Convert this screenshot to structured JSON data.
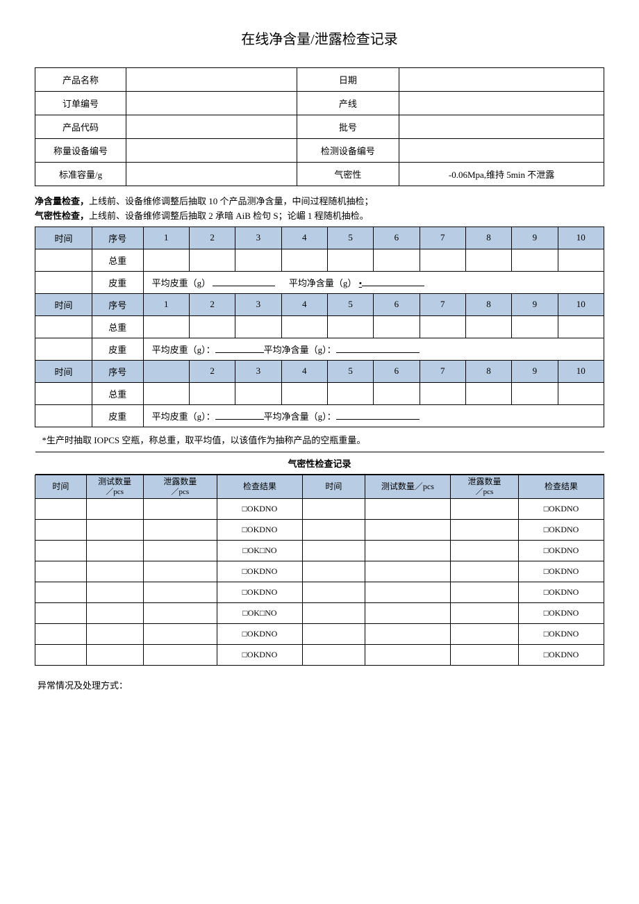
{
  "title": "在线净含量/泄露检查记录",
  "info": {
    "labels": {
      "product_name": "产品名称",
      "date": "日期",
      "order_no": "订单编号",
      "line": "产线",
      "product_code": "产品代码",
      "batch": "批号",
      "weigh_equip": "称量设备编号",
      "detect_equip": "检测设备编号",
      "std_capacity": "标准容量/g",
      "airtight": "气密性"
    },
    "airtight_value": "-0.06Mpa,维持 5min 不泄露"
  },
  "instructions": {
    "line1_bold": "净含量检查，",
    "line1_rest": "上线前、设备维修调整后抽取 10 个产品测净含量，中间过程随机抽检；",
    "line2_bold": "气密性检查，",
    "line2_rest": "上线前、设备维修调整后抽取 2 承暗 AiB 检句 S；论嵋 1 程随机抽检。"
  },
  "nc_section": {
    "time_label": "时间",
    "seq_label": "序号",
    "cols": [
      "1",
      "2",
      "3",
      "4",
      "5",
      "6",
      "7",
      "8",
      "9",
      "10"
    ],
    "cols_b3": [
      "",
      "2",
      "3",
      "4",
      "5",
      "6",
      "7",
      "8",
      "9",
      "10"
    ],
    "gross_label": "总重",
    "tare_label": "皮重",
    "avg_tare_g": "平均皮重（g）",
    "avg_net_g": "平均净含量（g）",
    "avg_tare_colon": "平均皮重（g）：",
    "avg_net_colon": "平均净含量（g）：",
    "note": "*生产时抽取 IOPCS 空瓶，称总重，取平均值，以该值作为抽称产品的空瓶重量。"
  },
  "leak_section": {
    "title": "气密性检查记录",
    "headers": {
      "time": "时间",
      "test_qty": "测试数量",
      "leak_qty": "泄露数量",
      "result": "检查结果",
      "test_qty_pcs": "测试数量／pcs"
    },
    "sub_pcs": "／pcs",
    "result_opts": {
      "okdno": "□OKDNO",
      "okno": "□OK□NO"
    },
    "row_results_left": [
      "okdno",
      "okdno",
      "okno",
      "okdno",
      "okdno",
      "okno",
      "okdno",
      "okdno"
    ],
    "row_results_right": [
      "okdno",
      "okdno",
      "okdno",
      "okdno",
      "okdno",
      "okdno",
      "okdno",
      "okdno"
    ]
  },
  "footer": "异常情况及处理方式："
}
